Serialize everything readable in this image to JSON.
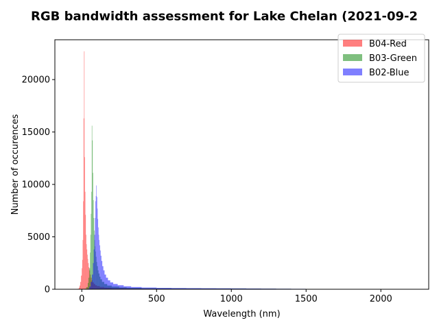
{
  "chart_data": {
    "type": "histogram",
    "title": "RGB bandwidth assessment for Lake Chelan (2021-09-2",
    "xlabel": "Wavelength (nm)",
    "ylabel": "Number of occurences",
    "xlim": [
      -180,
      2320
    ],
    "ylim": [
      0,
      23800
    ],
    "xticks": [
      0,
      500,
      1000,
      1500,
      2000
    ],
    "yticks": [
      0,
      5000,
      10000,
      15000,
      20000
    ],
    "grid": false,
    "legend_position": "top-right",
    "series": [
      {
        "name": "B04-Red",
        "color": "#ff0000",
        "alpha": 0.5,
        "bins": [
          [
            -40,
            0
          ],
          [
            -30,
            40
          ],
          [
            -20,
            150
          ],
          [
            -15,
            350
          ],
          [
            -10,
            700
          ],
          [
            -5,
            1300
          ],
          [
            0,
            2000
          ],
          [
            3,
            2800
          ],
          [
            6,
            4700
          ],
          [
            9,
            8400
          ],
          [
            12,
            16300
          ],
          [
            15,
            22700
          ],
          [
            18,
            12600
          ],
          [
            21,
            9300
          ],
          [
            24,
            7100
          ],
          [
            27,
            5200
          ],
          [
            30,
            4300
          ],
          [
            33,
            3800
          ],
          [
            36,
            3300
          ],
          [
            39,
            2900
          ],
          [
            42,
            2500
          ],
          [
            46,
            2100
          ],
          [
            50,
            1800
          ],
          [
            55,
            1400
          ],
          [
            60,
            1100
          ],
          [
            66,
            850
          ],
          [
            72,
            650
          ],
          [
            80,
            500
          ],
          [
            90,
            380
          ],
          [
            100,
            300
          ],
          [
            120,
            220
          ],
          [
            150,
            160
          ],
          [
            200,
            110
          ],
          [
            300,
            80
          ],
          [
            400,
            70
          ],
          [
            500,
            65
          ],
          [
            600,
            60
          ],
          [
            700,
            58
          ],
          [
            800,
            55
          ],
          [
            900,
            52
          ],
          [
            1000,
            50
          ],
          [
            1100,
            45
          ],
          [
            1200,
            40
          ],
          [
            1300,
            35
          ],
          [
            1400,
            25
          ],
          [
            1450,
            15
          ],
          [
            1500,
            5
          ]
        ]
      },
      {
        "name": "B03-Green",
        "color": "#008000",
        "alpha": 0.5,
        "bins": [
          [
            20,
            50
          ],
          [
            30,
            200
          ],
          [
            40,
            600
          ],
          [
            45,
            1100
          ],
          [
            50,
            2000
          ],
          [
            55,
            3500
          ],
          [
            58,
            5200
          ],
          [
            61,
            7200
          ],
          [
            64,
            9300
          ],
          [
            67,
            15600
          ],
          [
            70,
            14200
          ],
          [
            73,
            11100
          ],
          [
            76,
            8500
          ],
          [
            79,
            6800
          ],
          [
            82,
            5600
          ],
          [
            85,
            4700
          ],
          [
            88,
            4100
          ],
          [
            91,
            3600
          ],
          [
            94,
            3100
          ],
          [
            98,
            2600
          ],
          [
            102,
            2200
          ],
          [
            107,
            1800
          ],
          [
            112,
            1500
          ],
          [
            118,
            1200
          ],
          [
            125,
            950
          ],
          [
            135,
            700
          ],
          [
            150,
            500
          ],
          [
            170,
            350
          ],
          [
            200,
            250
          ],
          [
            250,
            170
          ],
          [
            300,
            130
          ],
          [
            400,
            100
          ],
          [
            500,
            90
          ],
          [
            600,
            85
          ],
          [
            700,
            80
          ],
          [
            800,
            78
          ],
          [
            900,
            75
          ],
          [
            1000,
            72
          ],
          [
            1100,
            65
          ],
          [
            1200,
            55
          ],
          [
            1300,
            45
          ],
          [
            1400,
            35
          ],
          [
            1500,
            25
          ],
          [
            1550,
            15
          ],
          [
            1600,
            5
          ]
        ]
      },
      {
        "name": "B02-Blue",
        "color": "#0000ff",
        "alpha": 0.5,
        "bins": [
          [
            40,
            60
          ],
          [
            50,
            250
          ],
          [
            60,
            700
          ],
          [
            68,
            1400
          ],
          [
            75,
            2500
          ],
          [
            80,
            3800
          ],
          [
            84,
            5200
          ],
          [
            88,
            6800
          ],
          [
            91,
            8400
          ],
          [
            94,
            8900
          ],
          [
            97,
            9900
          ],
          [
            100,
            8800
          ],
          [
            103,
            7700
          ],
          [
            106,
            6700
          ],
          [
            109,
            5900
          ],
          [
            112,
            5200
          ],
          [
            115,
            4700
          ],
          [
            118,
            4200
          ],
          [
            122,
            3700
          ],
          [
            126,
            3200
          ],
          [
            131,
            2700
          ],
          [
            137,
            2200
          ],
          [
            144,
            1800
          ],
          [
            152,
            1400
          ],
          [
            162,
            1100
          ],
          [
            175,
            850
          ],
          [
            190,
            650
          ],
          [
            210,
            500
          ],
          [
            240,
            380
          ],
          [
            280,
            280
          ],
          [
            330,
            210
          ],
          [
            400,
            160
          ],
          [
            500,
            130
          ],
          [
            600,
            115
          ],
          [
            700,
            105
          ],
          [
            800,
            95
          ],
          [
            900,
            88
          ],
          [
            1000,
            80
          ],
          [
            1100,
            70
          ],
          [
            1200,
            60
          ],
          [
            1300,
            50
          ],
          [
            1400,
            40
          ],
          [
            1500,
            30
          ],
          [
            1600,
            22
          ],
          [
            1800,
            15
          ],
          [
            2000,
            8
          ],
          [
            2200,
            3
          ]
        ]
      }
    ]
  }
}
